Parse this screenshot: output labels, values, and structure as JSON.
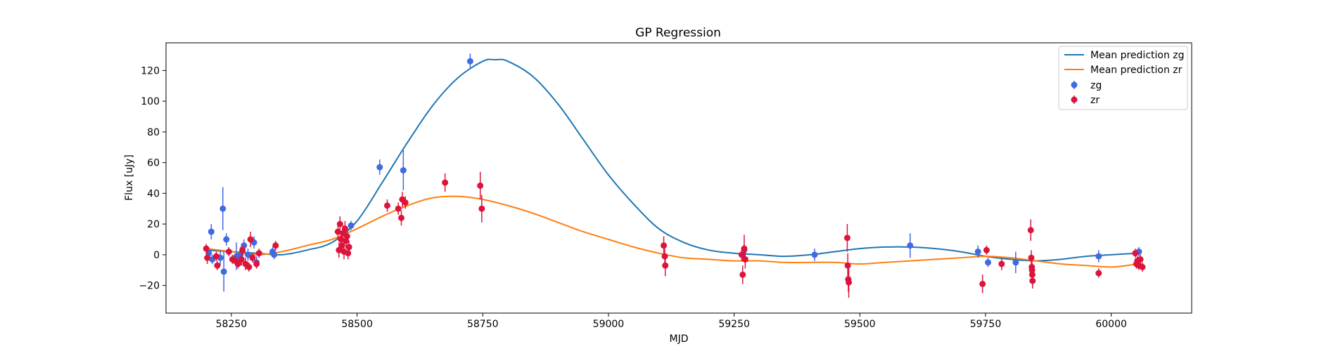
{
  "chart_data": {
    "type": "scatter",
    "title": "GP Regression",
    "xlabel": "MJD",
    "ylabel": "Flux [uJy]",
    "xlim": [
      58120,
      60160
    ],
    "ylim": [
      -38,
      138
    ],
    "xticks": [
      58250,
      58500,
      58750,
      59000,
      59250,
      59500,
      59750,
      60000
    ],
    "yticks": [
      -20,
      0,
      20,
      40,
      60,
      80,
      100,
      120
    ],
    "legend_position": "top-right",
    "lines": [
      {
        "name": "Mean prediction zg",
        "color": "#1f77b4",
        "x": [
          58200,
          58250,
          58300,
          58350,
          58400,
          58450,
          58500,
          58550,
          58600,
          58650,
          58700,
          58750,
          58775,
          58800,
          58850,
          58900,
          58950,
          59000,
          59050,
          59100,
          59150,
          59200,
          59250,
          59300,
          59350,
          59400,
          59450,
          59500,
          59550,
          59600,
          59650,
          59700,
          59750,
          59800,
          59850,
          59900,
          59950,
          60000,
          60050,
          60060
        ],
        "y": [
          3,
          2,
          1,
          0,
          3,
          8,
          22,
          47,
          73,
          97,
          115,
          126,
          127,
          126,
          116,
          98,
          75,
          52,
          33,
          17,
          8,
          3,
          1,
          0,
          -1,
          0,
          2,
          4,
          5,
          5,
          4,
          2,
          -1,
          -3,
          -4,
          -3,
          -1,
          0,
          1,
          1
        ]
      },
      {
        "name": "Mean prediction zr",
        "color": "#ff7f0e",
        "x": [
          58200,
          58250,
          58300,
          58350,
          58400,
          58450,
          58500,
          58550,
          58600,
          58650,
          58700,
          58750,
          58800,
          58850,
          58900,
          58950,
          59000,
          59050,
          59100,
          59150,
          59200,
          59250,
          59300,
          59350,
          59400,
          59450,
          59500,
          59550,
          59600,
          59650,
          59700,
          59750,
          59800,
          59850,
          59900,
          59950,
          60000,
          60050,
          60060
        ],
        "y": [
          4,
          2,
          0,
          2,
          6,
          10,
          17,
          25,
          32,
          37,
          38,
          36,
          32,
          27,
          21,
          15,
          10,
          5,
          1,
          -2,
          -3,
          -4,
          -4,
          -5,
          -5,
          -5,
          -6,
          -5,
          -4,
          -3,
          -2,
          -1,
          -2,
          -4,
          -6,
          -7,
          -8,
          -6,
          -4
        ]
      }
    ],
    "series": [
      {
        "name": "zg",
        "color": "#4169e1",
        "points": [
          {
            "x": 58205,
            "y": 1,
            "err": 4
          },
          {
            "x": 58210,
            "y": 15,
            "err": 5
          },
          {
            "x": 58212,
            "y": -3,
            "err": 3
          },
          {
            "x": 58228,
            "y": -2,
            "err": 5
          },
          {
            "x": 58233,
            "y": 30,
            "err": 14
          },
          {
            "x": 58235,
            "y": -11,
            "err": 13
          },
          {
            "x": 58240,
            "y": 10,
            "err": 4
          },
          {
            "x": 58260,
            "y": -1,
            "err": 9
          },
          {
            "x": 58268,
            "y": 0,
            "err": 5
          },
          {
            "x": 58275,
            "y": 6,
            "err": 4
          },
          {
            "x": 58283,
            "y": 0,
            "err": 4
          },
          {
            "x": 58295,
            "y": 8,
            "err": 4
          },
          {
            "x": 58300,
            "y": -5,
            "err": 4
          },
          {
            "x": 58332,
            "y": 2,
            "err": 3
          },
          {
            "x": 58335,
            "y": 0,
            "err": 3
          },
          {
            "x": 58488,
            "y": 19,
            "err": 3
          },
          {
            "x": 58545,
            "y": 57,
            "err": 5
          },
          {
            "x": 58592,
            "y": 55,
            "err": 13
          },
          {
            "x": 58725,
            "y": 126,
            "err": 5
          },
          {
            "x": 59270,
            "y": 3,
            "err": 4
          },
          {
            "x": 59410,
            "y": 0,
            "err": 4
          },
          {
            "x": 59600,
            "y": 6,
            "err": 8
          },
          {
            "x": 59735,
            "y": 2,
            "err": 4
          },
          {
            "x": 59755,
            "y": -5,
            "err": 3
          },
          {
            "x": 59810,
            "y": -5,
            "err": 7
          },
          {
            "x": 59975,
            "y": -1,
            "err": 4
          },
          {
            "x": 60055,
            "y": 2,
            "err": 3
          }
        ]
      },
      {
        "name": "zr",
        "color": "#dc143c",
        "points": [
          {
            "x": 58200,
            "y": 4,
            "err": 3
          },
          {
            "x": 58202,
            "y": -2,
            "err": 4
          },
          {
            "x": 58220,
            "y": -1,
            "err": 3
          },
          {
            "x": 58222,
            "y": -7,
            "err": 3
          },
          {
            "x": 58245,
            "y": 2,
            "err": 3
          },
          {
            "x": 58252,
            "y": -3,
            "err": 3
          },
          {
            "x": 58258,
            "y": -4,
            "err": 3
          },
          {
            "x": 58263,
            "y": -6,
            "err": 3
          },
          {
            "x": 58270,
            "y": -3,
            "err": 4
          },
          {
            "x": 58272,
            "y": 3,
            "err": 3
          },
          {
            "x": 58278,
            "y": -6,
            "err": 4
          },
          {
            "x": 58285,
            "y": -8,
            "err": 3
          },
          {
            "x": 58288,
            "y": 10,
            "err": 5
          },
          {
            "x": 58292,
            "y": -2,
            "err": 3
          },
          {
            "x": 58300,
            "y": -6,
            "err": 3
          },
          {
            "x": 58305,
            "y": 1,
            "err": 3
          },
          {
            "x": 58338,
            "y": 6,
            "err": 3
          },
          {
            "x": 58462,
            "y": 15,
            "err": 5
          },
          {
            "x": 58464,
            "y": 3,
            "err": 5
          },
          {
            "x": 58466,
            "y": 20,
            "err": 5
          },
          {
            "x": 58468,
            "y": 10,
            "err": 5
          },
          {
            "x": 58470,
            "y": 6,
            "err": 5
          },
          {
            "x": 58472,
            "y": 14,
            "err": 5
          },
          {
            "x": 58474,
            "y": 2,
            "err": 5
          },
          {
            "x": 58476,
            "y": 17,
            "err": 5
          },
          {
            "x": 58478,
            "y": 9,
            "err": 5
          },
          {
            "x": 58480,
            "y": 12,
            "err": 5
          },
          {
            "x": 58482,
            "y": 1,
            "err": 4
          },
          {
            "x": 58484,
            "y": 5,
            "err": 4
          },
          {
            "x": 58560,
            "y": 32,
            "err": 4
          },
          {
            "x": 58582,
            "y": 30,
            "err": 4
          },
          {
            "x": 58588,
            "y": 24,
            "err": 5
          },
          {
            "x": 58590,
            "y": 36,
            "err": 5
          },
          {
            "x": 58596,
            "y": 34,
            "err": 4
          },
          {
            "x": 58675,
            "y": 47,
            "err": 6
          },
          {
            "x": 58745,
            "y": 45,
            "err": 9
          },
          {
            "x": 58748,
            "y": 30,
            "err": 9
          },
          {
            "x": 59110,
            "y": 6,
            "err": 6
          },
          {
            "x": 59112,
            "y": -1,
            "err": 5
          },
          {
            "x": 59113,
            "y": -7,
            "err": 7
          },
          {
            "x": 59265,
            "y": 0,
            "err": 4
          },
          {
            "x": 59267,
            "y": -13,
            "err": 6
          },
          {
            "x": 59270,
            "y": 4,
            "err": 9
          },
          {
            "x": 59272,
            "y": -3,
            "err": 6
          },
          {
            "x": 59475,
            "y": 11,
            "err": 9
          },
          {
            "x": 59476,
            "y": -7,
            "err": 8
          },
          {
            "x": 59477,
            "y": -16,
            "err": 8
          },
          {
            "x": 59478,
            "y": -18,
            "err": 10
          },
          {
            "x": 59744,
            "y": -19,
            "err": 6
          },
          {
            "x": 59752,
            "y": 3,
            "err": 3
          },
          {
            "x": 59782,
            "y": -6,
            "err": 4
          },
          {
            "x": 59840,
            "y": 16,
            "err": 7
          },
          {
            "x": 59841,
            "y": -2,
            "err": 5
          },
          {
            "x": 59842,
            "y": -8,
            "err": 5
          },
          {
            "x": 59842.5,
            "y": -10,
            "err": 5
          },
          {
            "x": 59843,
            "y": -13,
            "err": 5
          },
          {
            "x": 59843.5,
            "y": -17,
            "err": 5
          },
          {
            "x": 59975,
            "y": -12,
            "err": 3
          },
          {
            "x": 60048,
            "y": 1,
            "err": 3
          },
          {
            "x": 60050,
            "y": -6,
            "err": 3
          },
          {
            "x": 60052,
            "y": -4,
            "err": 3
          },
          {
            "x": 60055,
            "y": -7,
            "err": 3
          },
          {
            "x": 60058,
            "y": -3,
            "err": 3
          },
          {
            "x": 60062,
            "y": -8,
            "err": 3
          }
        ]
      }
    ]
  }
}
